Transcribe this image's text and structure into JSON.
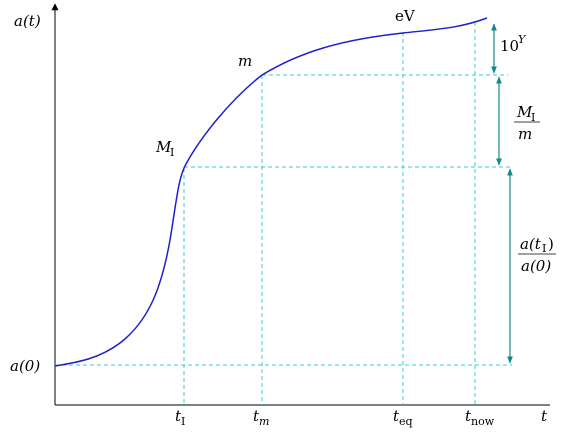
{
  "axes": {
    "y_label": "a(t)",
    "x_label": "t",
    "y0_label": "a(0)"
  },
  "ticks": [
    {
      "main": "t",
      "sub": "I"
    },
    {
      "main": "t",
      "sub": "m"
    },
    {
      "main": "t",
      "sub": "eq"
    },
    {
      "main": "t",
      "sub": "now"
    }
  ],
  "curve_labels": {
    "inflation": {
      "main": "M",
      "sub": "I"
    },
    "matter": "m",
    "equality": "eV"
  },
  "interval_labels": {
    "top": {
      "base": "10",
      "sup": "Y"
    },
    "middle": {
      "num": "M",
      "num_sub": "I",
      "den": "m"
    },
    "bottom": {
      "num_main": "a(t",
      "num_sub": "I",
      "num_close": ")",
      "den": "a(0)"
    }
  },
  "colors": {
    "curve": "#1f1fcc",
    "guides": "#2fd3d3",
    "interval_arrows": "#138a8a"
  }
}
